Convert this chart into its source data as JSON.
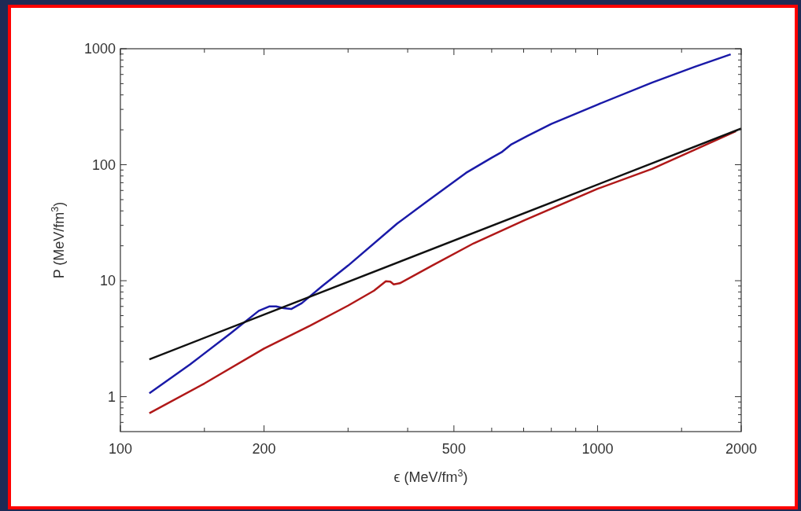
{
  "chart_data": {
    "type": "line",
    "xlabel": "ϵ (MeV/fm$^{3}$)",
    "ylabel": "P (MeV/fm$^{3}$)",
    "log": "xy",
    "grid": false,
    "line_style": "solid",
    "xlim": [
      100,
      2000
    ],
    "ylim": [
      0.5,
      1000
    ],
    "xticks": [
      100,
      {
        "value": 150,
        "label": null
      },
      200,
      {
        "value": 300,
        "label": null
      },
      {
        "value": 400,
        "label": null
      },
      500,
      {
        "value": 600,
        "label": null
      },
      {
        "value": 700,
        "label": null
      },
      {
        "value": 800,
        "label": null
      },
      {
        "value": 900,
        "label": null
      },
      1000,
      {
        "value": 1500,
        "label": null
      },
      2000
    ],
    "yticks": [
      {
        "value": 0.6,
        "label": null
      },
      {
        "value": 0.7,
        "label": null
      },
      {
        "value": 0.8,
        "label": null
      },
      {
        "value": 0.9,
        "label": null
      },
      1,
      {
        "value": 2,
        "label": null
      },
      {
        "value": 3,
        "label": null
      },
      {
        "value": 4,
        "label": null
      },
      {
        "value": 5,
        "label": null
      },
      {
        "value": 6,
        "label": null
      },
      {
        "value": 7,
        "label": null
      },
      {
        "value": 8,
        "label": null
      },
      {
        "value": 9,
        "label": null
      },
      10,
      {
        "value": 20,
        "label": null
      },
      {
        "value": 30,
        "label": null
      },
      {
        "value": 40,
        "label": null
      },
      {
        "value": 50,
        "label": null
      },
      {
        "value": 60,
        "label": null
      },
      {
        "value": 70,
        "label": null
      },
      {
        "value": 80,
        "label": null
      },
      {
        "value": 90,
        "label": null
      },
      100,
      {
        "value": 200,
        "label": null
      },
      {
        "value": 300,
        "label": null
      },
      {
        "value": 400,
        "label": null
      },
      {
        "value": 500,
        "label": null
      },
      {
        "value": 600,
        "label": null
      },
      {
        "value": 700,
        "label": null
      },
      {
        "value": 800,
        "label": null
      },
      {
        "value": 900,
        "label": null
      },
      1000
    ],
    "series": [
      {
        "color": "#1a1aa8",
        "x": [
          115,
          140,
          170,
          195,
          205,
          212,
          220,
          228,
          240,
          265,
          300,
          380,
          450,
          530,
          600,
          629,
          660,
          713,
          800,
          1000,
          1300,
          1600,
          1901
        ],
        "values": [
          1.07,
          1.9,
          3.5,
          5.5,
          6.0,
          6.0,
          5.8,
          5.7,
          6.4,
          9,
          13.5,
          31,
          52,
          85,
          115,
          128,
          150,
          177,
          225,
          330,
          510,
          700,
          895
        ]
      },
      {
        "color": "#b01818",
        "x": [
          115,
          150,
          200,
          250,
          300,
          340,
          360,
          368,
          374,
          385,
          450,
          550,
          700,
          1000,
          1300,
          1600,
          1950
        ],
        "values": [
          0.72,
          1.3,
          2.6,
          4.1,
          6.1,
          8.2,
          9.9,
          9.8,
          9.3,
          9.5,
          13.5,
          21,
          33,
          62,
          92,
          135,
          195
        ]
      },
      {
        "color": "#111111",
        "x": [
          115,
          2000
        ],
        "values": [
          2.1,
          205
        ]
      }
    ]
  }
}
